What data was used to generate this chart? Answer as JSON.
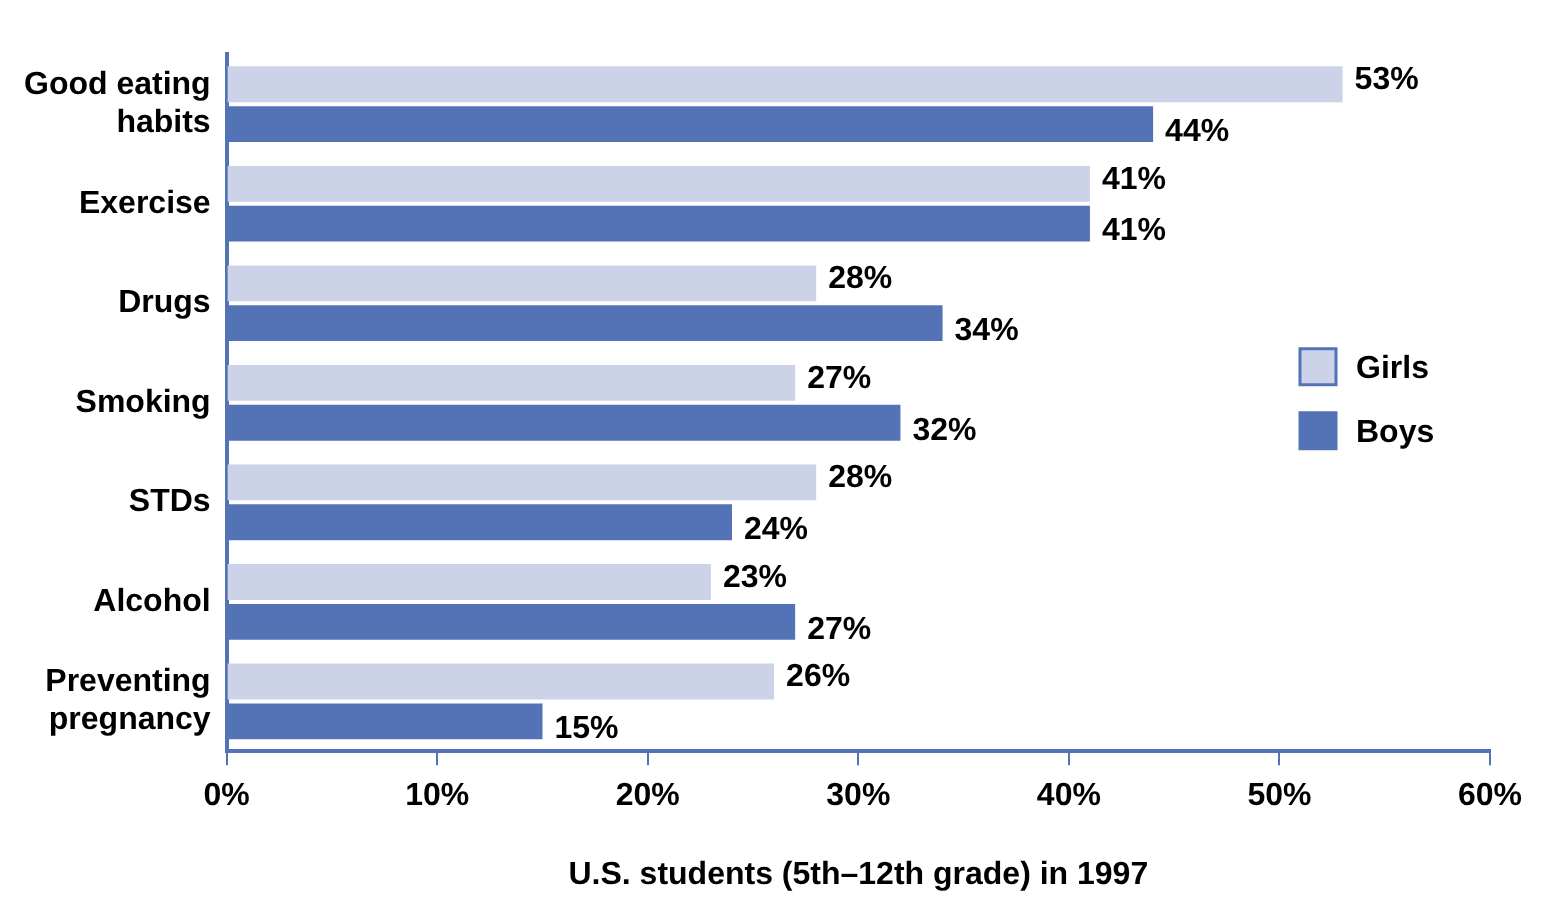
{
  "chart_data": {
    "type": "bar",
    "orientation": "horizontal",
    "xlabel": "U.S. students (5th–12th grade) in 1997",
    "categories": [
      "Good eating habits",
      "Exercise",
      "Drugs",
      "Smoking",
      "STDs",
      "Alcohol",
      "Preventing pregnancy"
    ],
    "series": [
      {
        "name": "Girls",
        "color": "#ccd3e8",
        "values": [
          53,
          41,
          28,
          27,
          28,
          23,
          26
        ],
        "value_labels": [
          "53%",
          "41%",
          "28%",
          "27%",
          "28%",
          "23%",
          "26%"
        ]
      },
      {
        "name": "Boys",
        "color": "#5373b6",
        "values": [
          44,
          41,
          34,
          32,
          24,
          27,
          15
        ],
        "value_labels": [
          "44%",
          "41%",
          "34%",
          "32%",
          "24%",
          "27%",
          "15%"
        ]
      }
    ],
    "xlim": [
      0,
      60
    ],
    "xticks": [
      {
        "value": 0,
        "label": "0%"
      },
      {
        "value": 10,
        "label": "10%"
      },
      {
        "value": 20,
        "label": "20%"
      },
      {
        "value": 30,
        "label": "30%"
      },
      {
        "value": 40,
        "label": "40%"
      },
      {
        "value": 50,
        "label": "50%"
      },
      {
        "value": 60,
        "label": "60%"
      }
    ],
    "grid": false,
    "legend": "right"
  }
}
